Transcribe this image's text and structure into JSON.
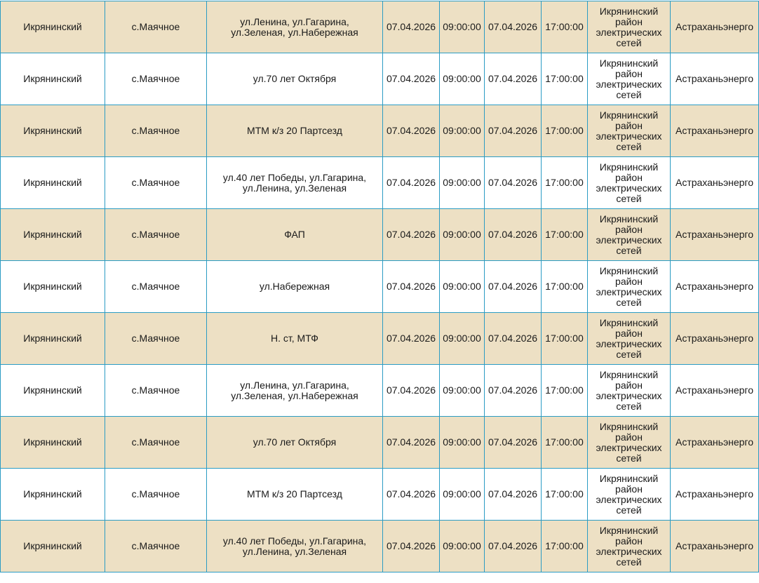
{
  "colors": {
    "row_alt": "#ede0c4",
    "row_plain": "#ffffff",
    "border": "#2b9cc4"
  },
  "rows": [
    {
      "district": "Икрянинский",
      "settlement": "с.Маячное",
      "address": "ул.Ленина, ул.Гагарина, ул.Зеленая, ул.Набережная",
      "start_date": "07.04.2026",
      "start_time": "09:00:00",
      "end_date": "07.04.2026",
      "end_time": "17:00:00",
      "branch": "Икрянинский район электрических сетей",
      "company": "Астраханьэнерго"
    },
    {
      "district": "Икрянинский",
      "settlement": "с.Маячное",
      "address": "ул.70 лет Октября",
      "start_date": "07.04.2026",
      "start_time": "09:00:00",
      "end_date": "07.04.2026",
      "end_time": "17:00:00",
      "branch": "Икрянинский район электрических сетей",
      "company": "Астраханьэнерго"
    },
    {
      "district": "Икрянинский",
      "settlement": "с.Маячное",
      "address": "МТМ к/з 20 Партсезд",
      "start_date": "07.04.2026",
      "start_time": "09:00:00",
      "end_date": "07.04.2026",
      "end_time": "17:00:00",
      "branch": "Икрянинский район электрических сетей",
      "company": "Астраханьэнерго"
    },
    {
      "district": "Икрянинский",
      "settlement": "с.Маячное",
      "address": "ул.40 лет Победы, ул.Гагарина, ул.Ленина, ул.Зеленая",
      "start_date": "07.04.2026",
      "start_time": "09:00:00",
      "end_date": "07.04.2026",
      "end_time": "17:00:00",
      "branch": "Икрянинский район электрических сетей",
      "company": "Астраханьэнерго"
    },
    {
      "district": "Икрянинский",
      "settlement": "с.Маячное",
      "address": "ФАП",
      "start_date": "07.04.2026",
      "start_time": "09:00:00",
      "end_date": "07.04.2026",
      "end_time": "17:00:00",
      "branch": "Икрянинский район электрических сетей",
      "company": "Астраханьэнерго"
    },
    {
      "district": "Икрянинский",
      "settlement": "с.Маячное",
      "address": "ул.Набережная",
      "start_date": "07.04.2026",
      "start_time": "09:00:00",
      "end_date": "07.04.2026",
      "end_time": "17:00:00",
      "branch": "Икрянинский район электрических сетей",
      "company": "Астраханьэнерго"
    },
    {
      "district": "Икрянинский",
      "settlement": "с.Маячное",
      "address": "Н. ст, МТФ",
      "start_date": "07.04.2026",
      "start_time": "09:00:00",
      "end_date": "07.04.2026",
      "end_time": "17:00:00",
      "branch": "Икрянинский район электрических сетей",
      "company": "Астраханьэнерго"
    },
    {
      "district": "Икрянинский",
      "settlement": "с.Маячное",
      "address": "ул.Ленина, ул.Гагарина, ул.Зеленая, ул.Набережная",
      "start_date": "07.04.2026",
      "start_time": "09:00:00",
      "end_date": "07.04.2026",
      "end_time": "17:00:00",
      "branch": "Икрянинский район электрических сетей",
      "company": "Астраханьэнерго"
    },
    {
      "district": "Икрянинский",
      "settlement": "с.Маячное",
      "address": "ул.70 лет Октября",
      "start_date": "07.04.2026",
      "start_time": "09:00:00",
      "end_date": "07.04.2026",
      "end_time": "17:00:00",
      "branch": "Икрянинский район электрических сетей",
      "company": "Астраханьэнерго"
    },
    {
      "district": "Икрянинский",
      "settlement": "с.Маячное",
      "address": "МТМ к/з 20 Партсезд",
      "start_date": "07.04.2026",
      "start_time": "09:00:00",
      "end_date": "07.04.2026",
      "end_time": "17:00:00",
      "branch": "Икрянинский район электрических сетей",
      "company": "Астраханьэнерго"
    },
    {
      "district": "Икрянинский",
      "settlement": "с.Маячное",
      "address": "ул.40 лет Победы, ул.Гагарина, ул.Ленина, ул.Зеленая",
      "start_date": "07.04.2026",
      "start_time": "09:00:00",
      "end_date": "07.04.2026",
      "end_time": "17:00:00",
      "branch": "Икрянинский район электрических сетей",
      "company": "Астраханьэнерго"
    }
  ]
}
